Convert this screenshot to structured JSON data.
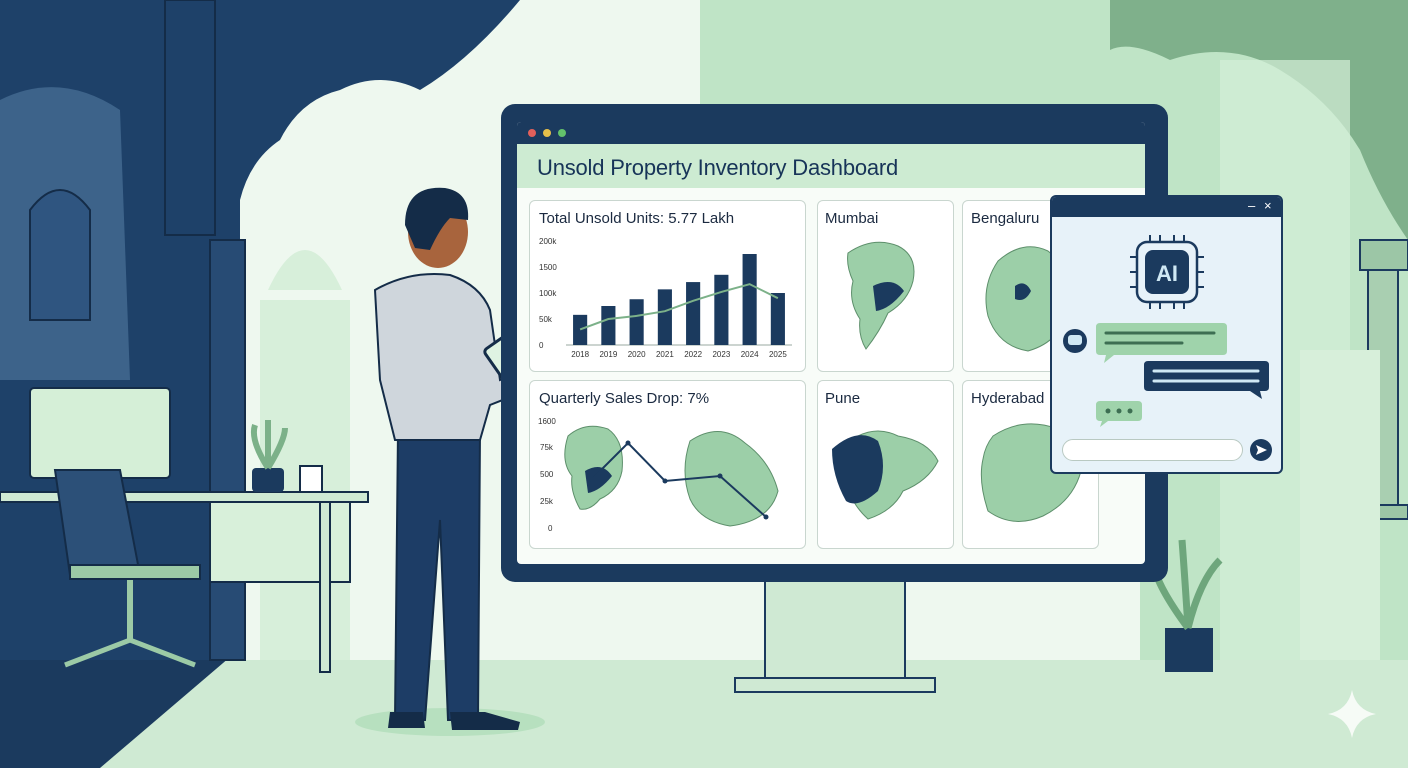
{
  "dashboard": {
    "title": "Unsold Property Inventory Dashboard",
    "total_card": {
      "title": "Total Unsold Units: 5.77 Lakh",
      "y_ticks": [
        "200k",
        "1500",
        "100k",
        "50k",
        "0"
      ]
    },
    "sales_card": {
      "title": "Quarterly Sales Drop: 7%",
      "y_ticks": [
        "1600",
        "75k",
        "500",
        "25k",
        "0"
      ]
    },
    "city_cards": [
      {
        "name": "Mumbai"
      },
      {
        "name": "Bengaluru"
      },
      {
        "name": "Pune"
      },
      {
        "name": "Hyderabad"
      }
    ]
  },
  "chart_data": {
    "type": "bar",
    "title": "Total Unsold Units: 5.77 Lakh",
    "categories": [
      "2018",
      "2019",
      "2020",
      "2021",
      "2022",
      "2023",
      "2024",
      "2025"
    ],
    "y_ticks": [
      "200k",
      "1500",
      "100k",
      "50k",
      "0"
    ],
    "series": [
      {
        "values": [
          58,
          75,
          88,
          107,
          121,
          135,
          175,
          100
        ]
      }
    ],
    "trend": [
      30,
      50,
      56,
      65,
      85,
      102,
      117,
      90
    ],
    "ylim": [
      0,
      200
    ]
  },
  "chat": {
    "badge": "AI",
    "input_value": ""
  },
  "colors": {
    "navy": "#1b3a5e",
    "mint": "#cdebd2",
    "green": "#7cb189",
    "background": "#e6f4e8"
  }
}
